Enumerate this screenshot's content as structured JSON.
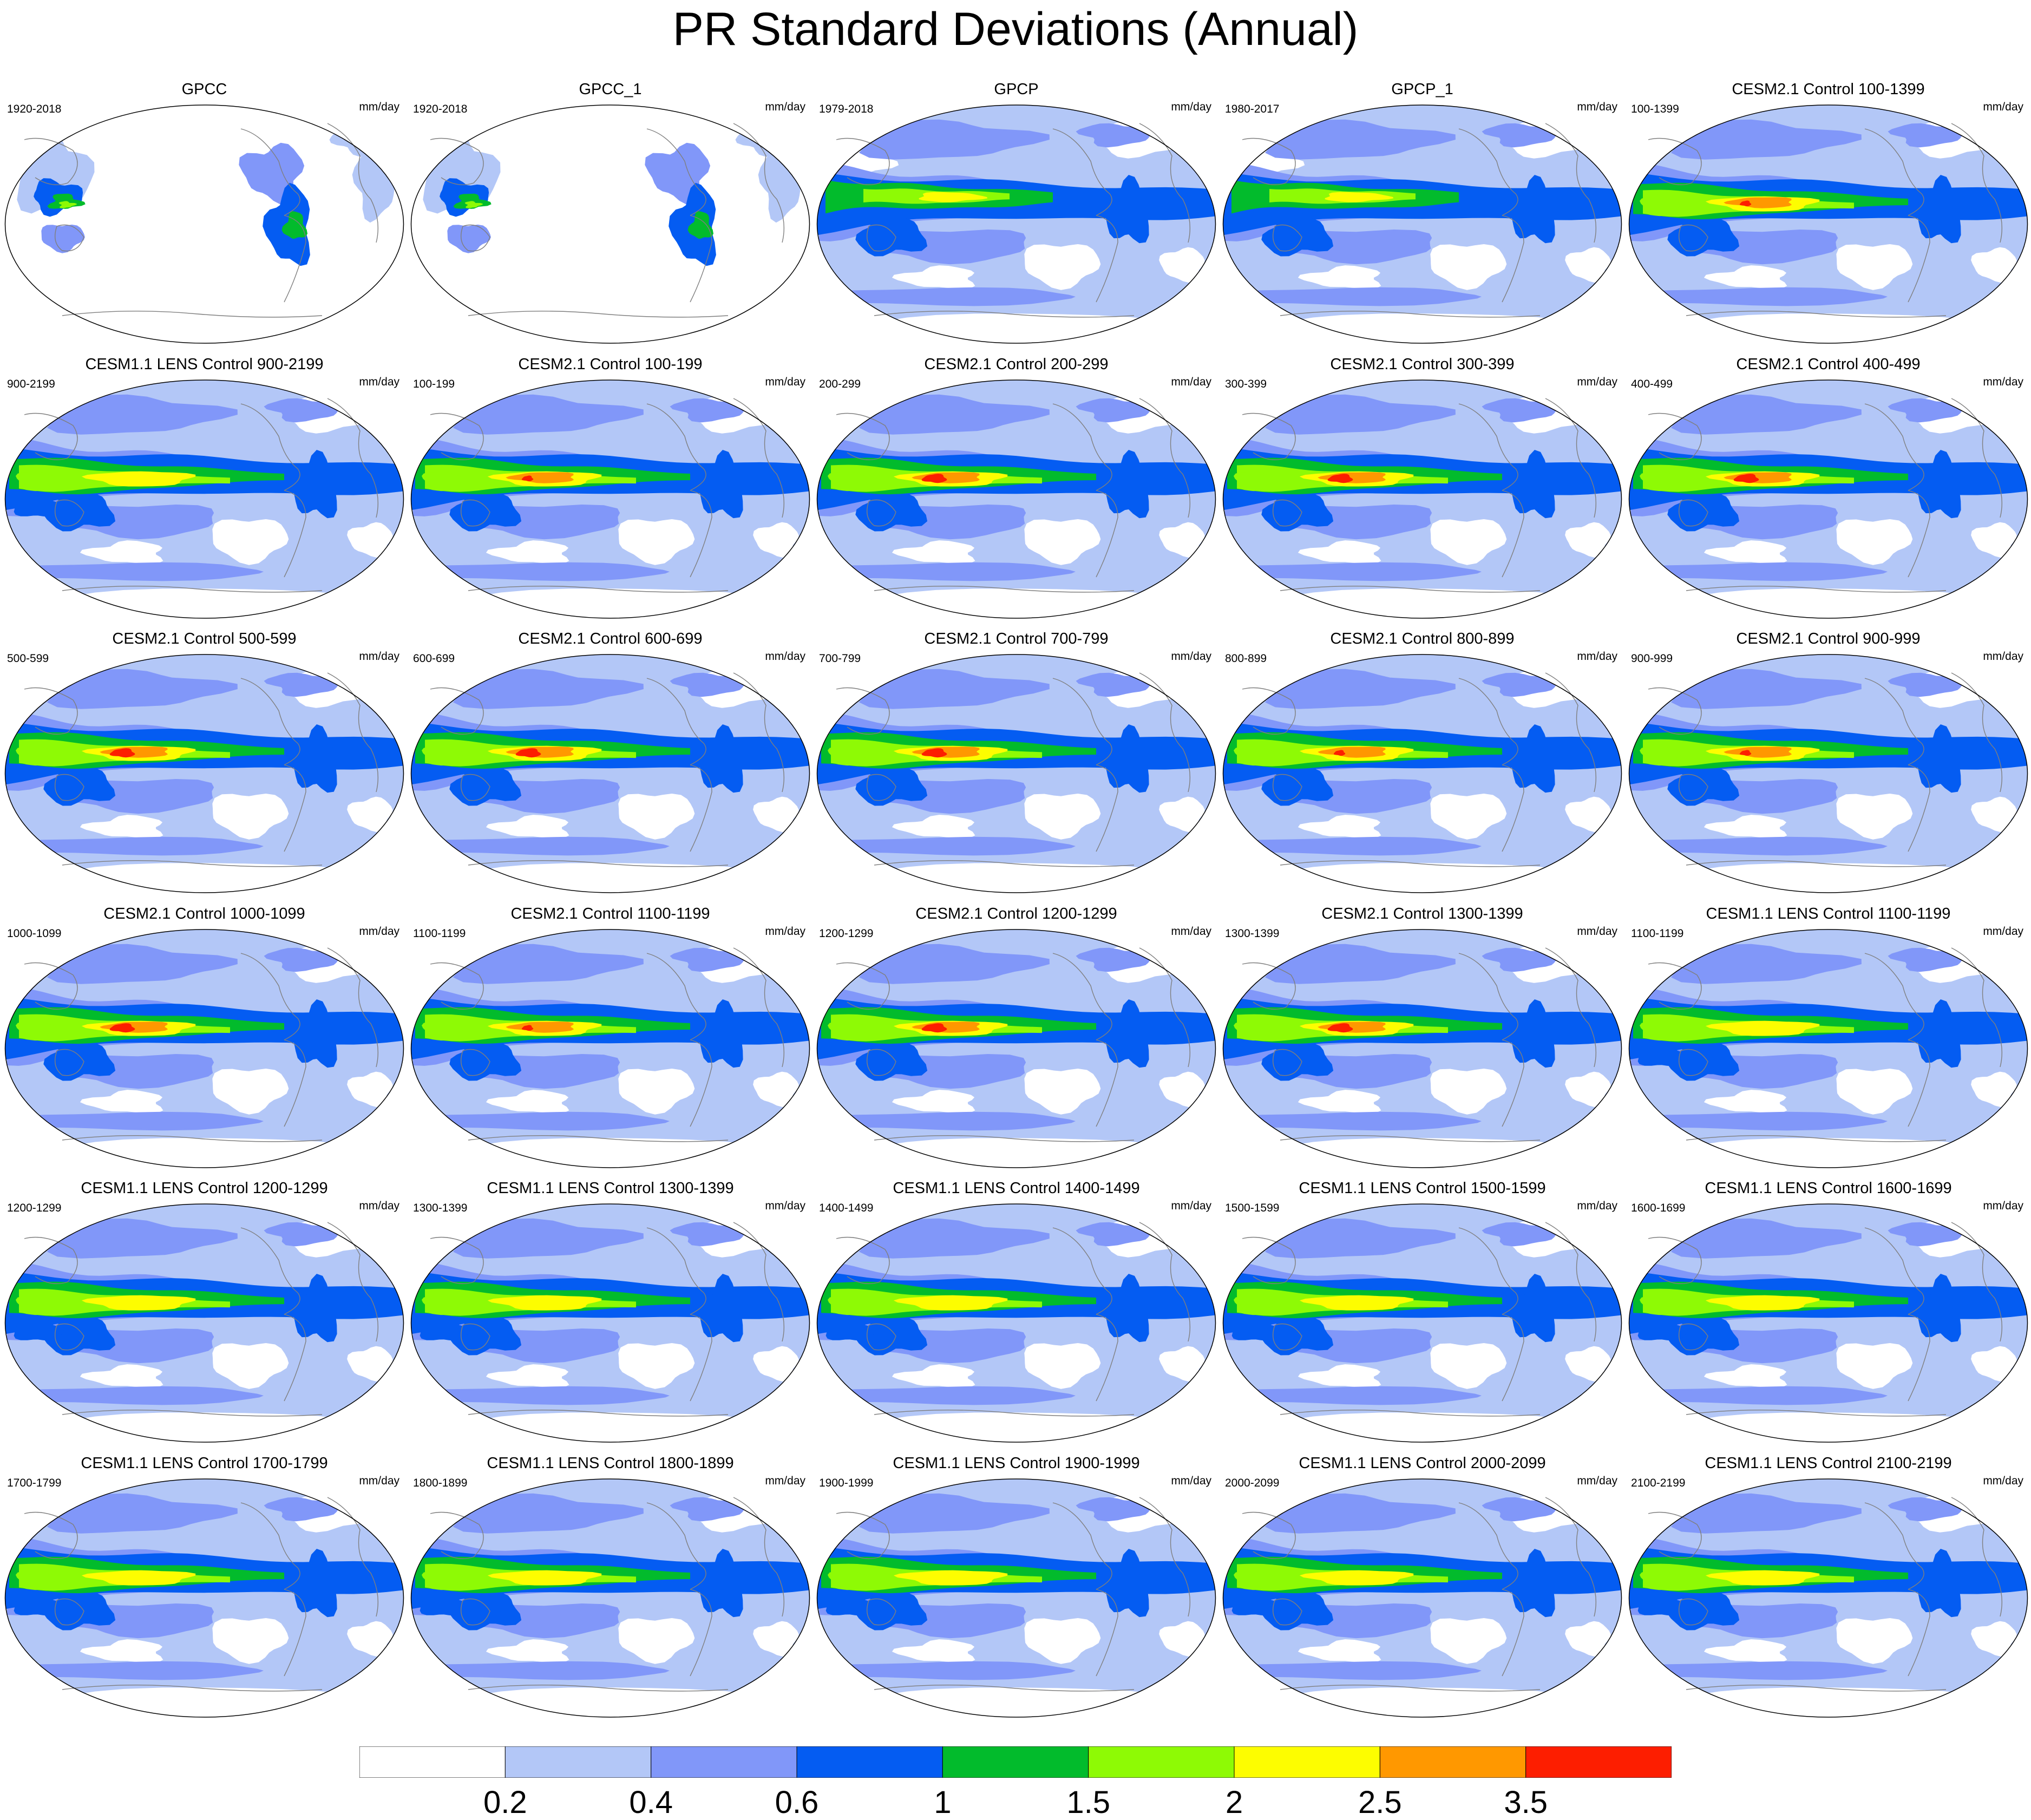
{
  "title": "PR Standard Deviations (Annual)",
  "units": "mm/day",
  "colorbar": {
    "levels": [
      "0.2",
      "0.4",
      "0.6",
      "1",
      "1.5",
      "2",
      "2.5",
      "3.5"
    ],
    "colors": [
      "#ffffff",
      "#b3c7f7",
      "#8197f9",
      "#045cf2",
      "#02bb2c",
      "#8efa05",
      "#fdfd00",
      "#ff9800",
      "#fd1e00"
    ]
  },
  "panels": [
    {
      "title": "GPCC",
      "period": "1920-2018",
      "kind": "gpcc",
      "intensity": 0
    },
    {
      "title": "GPCC_1",
      "period": "1920-2018",
      "kind": "gpcc",
      "intensity": 0
    },
    {
      "title": "GPCP",
      "period": "1979-2018",
      "kind": "gpcp",
      "intensity": 0
    },
    {
      "title": "GPCP_1",
      "period": "1980-2017",
      "kind": "gpcp",
      "intensity": 0
    },
    {
      "title": "CESM2.1 Control 100-1399",
      "period": "100-1399",
      "kind": "cesm2",
      "intensity": 2
    },
    {
      "title": "CESM1.1 LENS Control 900-2199",
      "period": "900-2199",
      "kind": "cesm1",
      "intensity": 1
    },
    {
      "title": "CESM2.1 Control 100-199",
      "period": "100-199",
      "kind": "cesm2",
      "intensity": 2
    },
    {
      "title": "CESM2.1 Control 200-299",
      "period": "200-299",
      "kind": "cesm2",
      "intensity": 3
    },
    {
      "title": "CESM2.1 Control 300-399",
      "period": "300-399",
      "kind": "cesm2",
      "intensity": 3
    },
    {
      "title": "CESM2.1 Control 400-499",
      "period": "400-499",
      "kind": "cesm2",
      "intensity": 3
    },
    {
      "title": "CESM2.1 Control 500-599",
      "period": "500-599",
      "kind": "cesm2",
      "intensity": 3
    },
    {
      "title": "CESM2.1 Control 600-699",
      "period": "600-699",
      "kind": "cesm2",
      "intensity": 3
    },
    {
      "title": "CESM2.1 Control 700-799",
      "period": "700-799",
      "kind": "cesm2",
      "intensity": 3
    },
    {
      "title": "CESM2.1 Control 800-899",
      "period": "800-899",
      "kind": "cesm2",
      "intensity": 2
    },
    {
      "title": "CESM2.1 Control 900-999",
      "period": "900-999",
      "kind": "cesm2",
      "intensity": 2
    },
    {
      "title": "CESM2.1 Control 1000-1099",
      "period": "1000-1099",
      "kind": "cesm2",
      "intensity": 3
    },
    {
      "title": "CESM2.1 Control 1100-1199",
      "period": "1100-1199",
      "kind": "cesm2",
      "intensity": 2
    },
    {
      "title": "CESM2.1 Control 1200-1299",
      "period": "1200-1299",
      "kind": "cesm2",
      "intensity": 3
    },
    {
      "title": "CESM2.1 Control 1300-1399",
      "period": "1300-1399",
      "kind": "cesm2",
      "intensity": 3
    },
    {
      "title": "CESM1.1 LENS Control 1100-1199",
      "period": "1100-1199",
      "kind": "cesm1",
      "intensity": 1
    },
    {
      "title": "CESM1.1 LENS Control 1200-1299",
      "period": "1200-1299",
      "kind": "cesm1",
      "intensity": 1
    },
    {
      "title": "CESM1.1 LENS Control 1300-1399",
      "period": "1300-1399",
      "kind": "cesm1",
      "intensity": 1
    },
    {
      "title": "CESM1.1 LENS Control 1400-1499",
      "period": "1400-1499",
      "kind": "cesm1",
      "intensity": 1
    },
    {
      "title": "CESM1.1 LENS Control 1500-1599",
      "period": "1500-1599",
      "kind": "cesm1",
      "intensity": 1
    },
    {
      "title": "CESM1.1 LENS Control 1600-1699",
      "period": "1600-1699",
      "kind": "cesm1",
      "intensity": 1
    },
    {
      "title": "CESM1.1 LENS Control 1700-1799",
      "period": "1700-1799",
      "kind": "cesm1",
      "intensity": 1
    },
    {
      "title": "CESM1.1 LENS Control 1800-1899",
      "period": "1800-1899",
      "kind": "cesm1",
      "intensity": 1
    },
    {
      "title": "CESM1.1 LENS Control 1900-1999",
      "period": "1900-1999",
      "kind": "cesm1",
      "intensity": 1
    },
    {
      "title": "CESM1.1 LENS Control 2000-2099",
      "period": "2000-2099",
      "kind": "cesm1",
      "intensity": 1
    },
    {
      "title": "CESM1.1 LENS Control 2100-2199",
      "period": "2100-2199",
      "kind": "cesm1",
      "intensity": 1
    }
  ]
}
